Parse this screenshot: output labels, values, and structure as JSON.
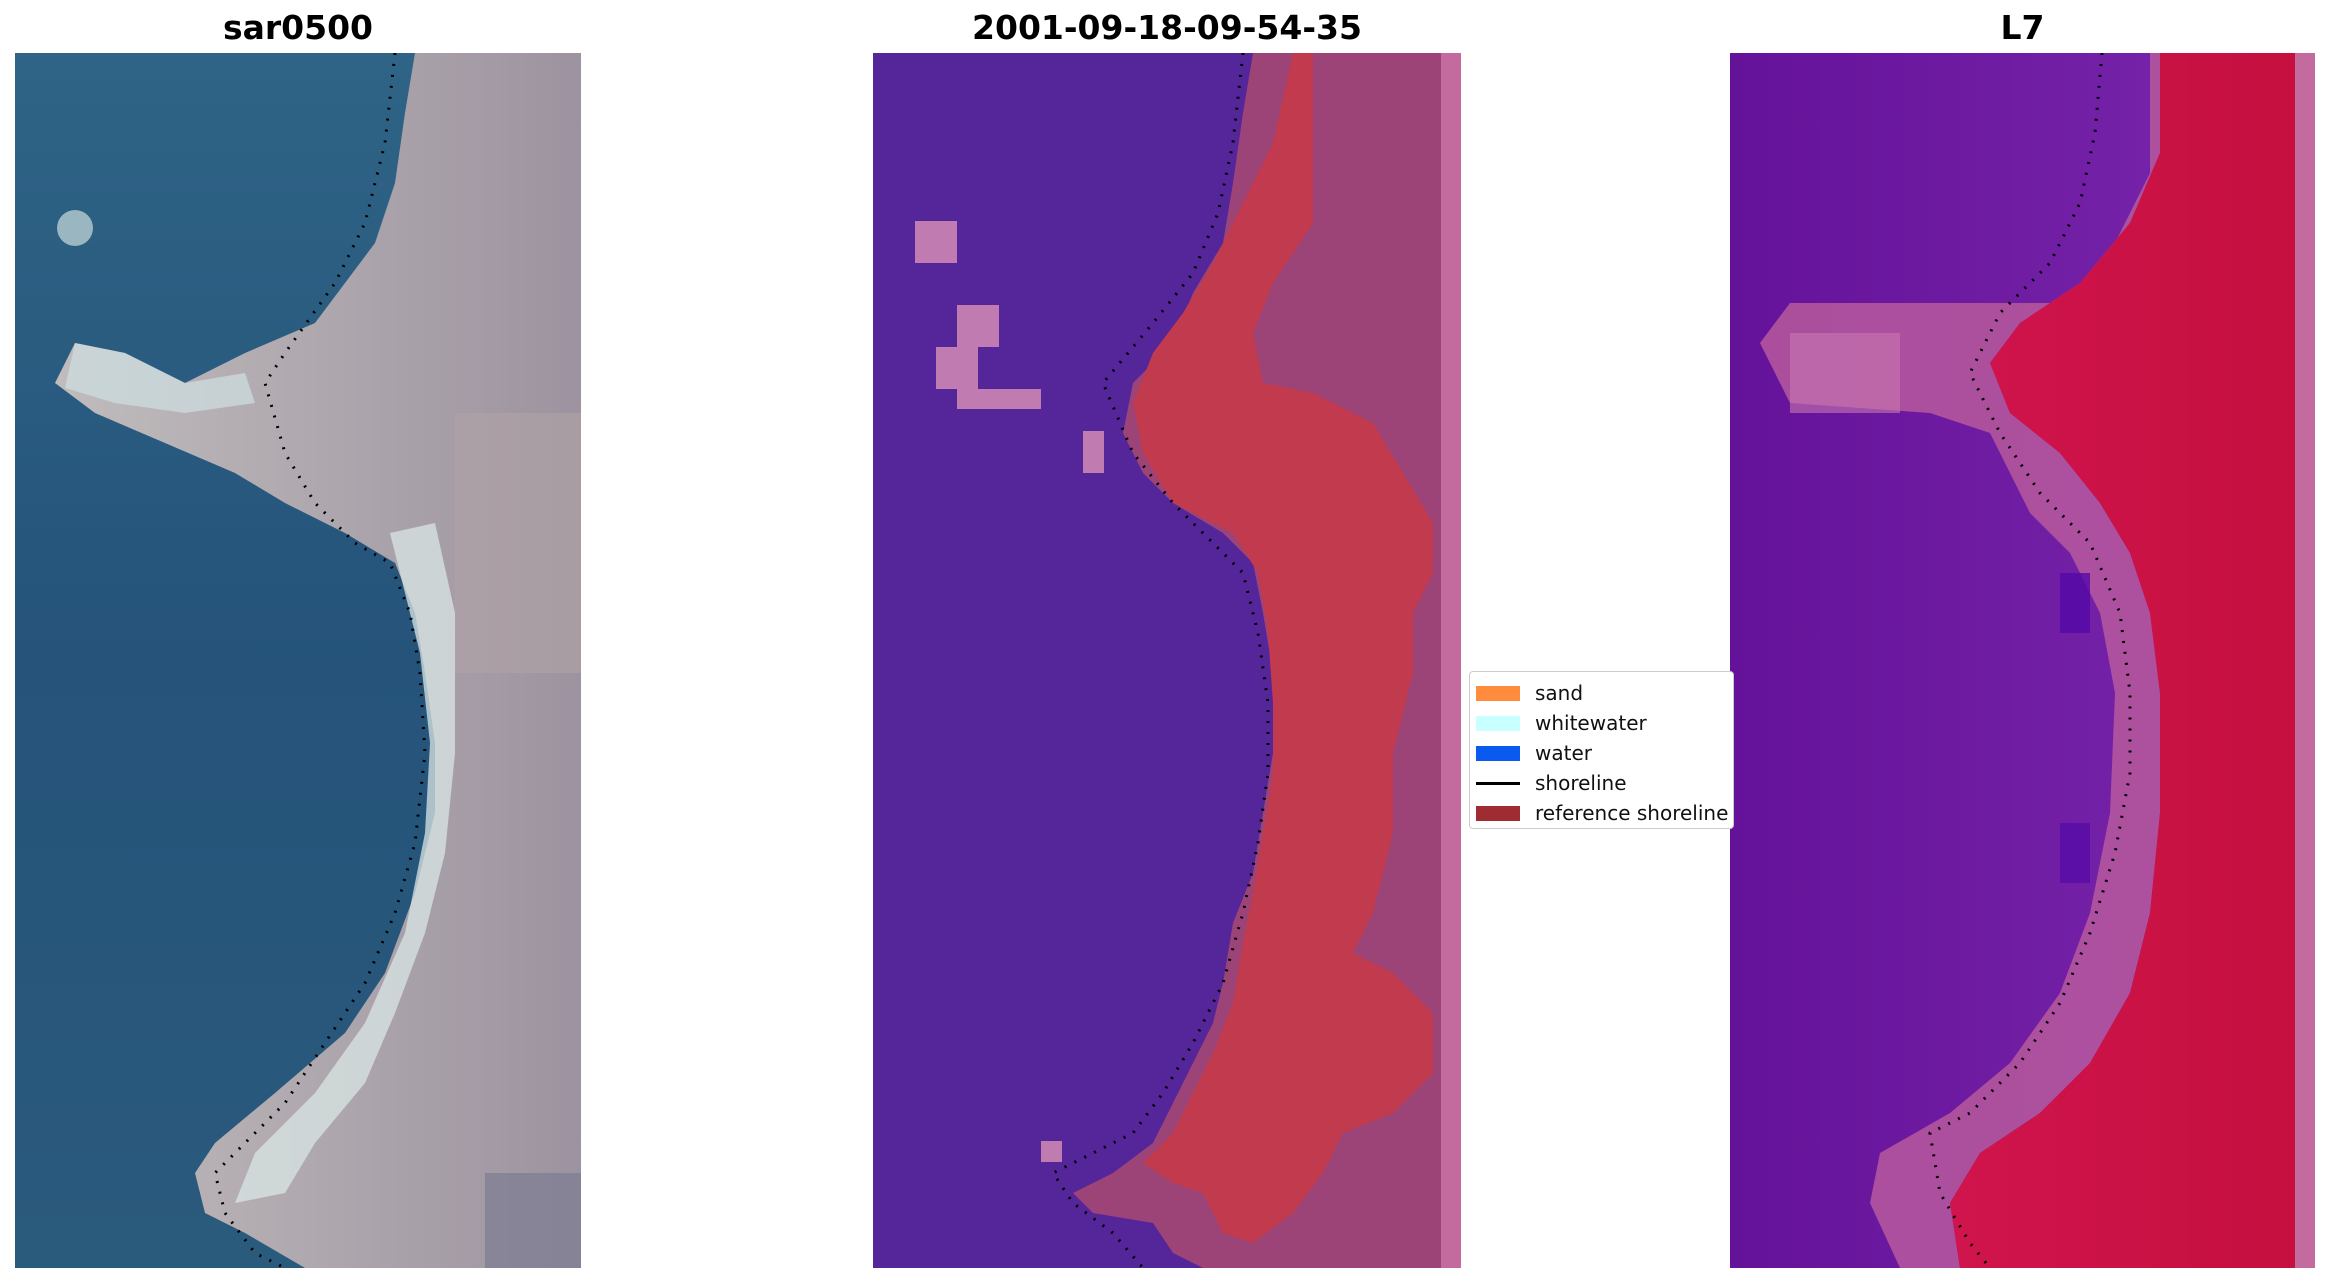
{
  "panels": [
    {
      "title": "sar0500"
    },
    {
      "title": "2001-09-18-09-54-35"
    },
    {
      "title": "L7"
    }
  ],
  "legend": {
    "items": [
      {
        "label": "sand",
        "color": "#ff8c3c",
        "kind": "patch"
      },
      {
        "label": "whitewater",
        "color": "#c8ffff",
        "kind": "patch"
      },
      {
        "label": "water",
        "color": "#0a5af0",
        "kind": "patch"
      },
      {
        "label": "shoreline",
        "color": "#000000",
        "kind": "line"
      },
      {
        "label": "reference shoreline",
        "color": "#a02c33",
        "kind": "patch"
      }
    ]
  },
  "colors": {
    "water_rgb": "#2d5f80",
    "land_rgb": "#a9a0a0",
    "water_class": "#55259a",
    "sand_class": "#c23a4e",
    "land_class": "#9c4477",
    "water_index": "#6a179f",
    "land_index": "#c80e42"
  }
}
